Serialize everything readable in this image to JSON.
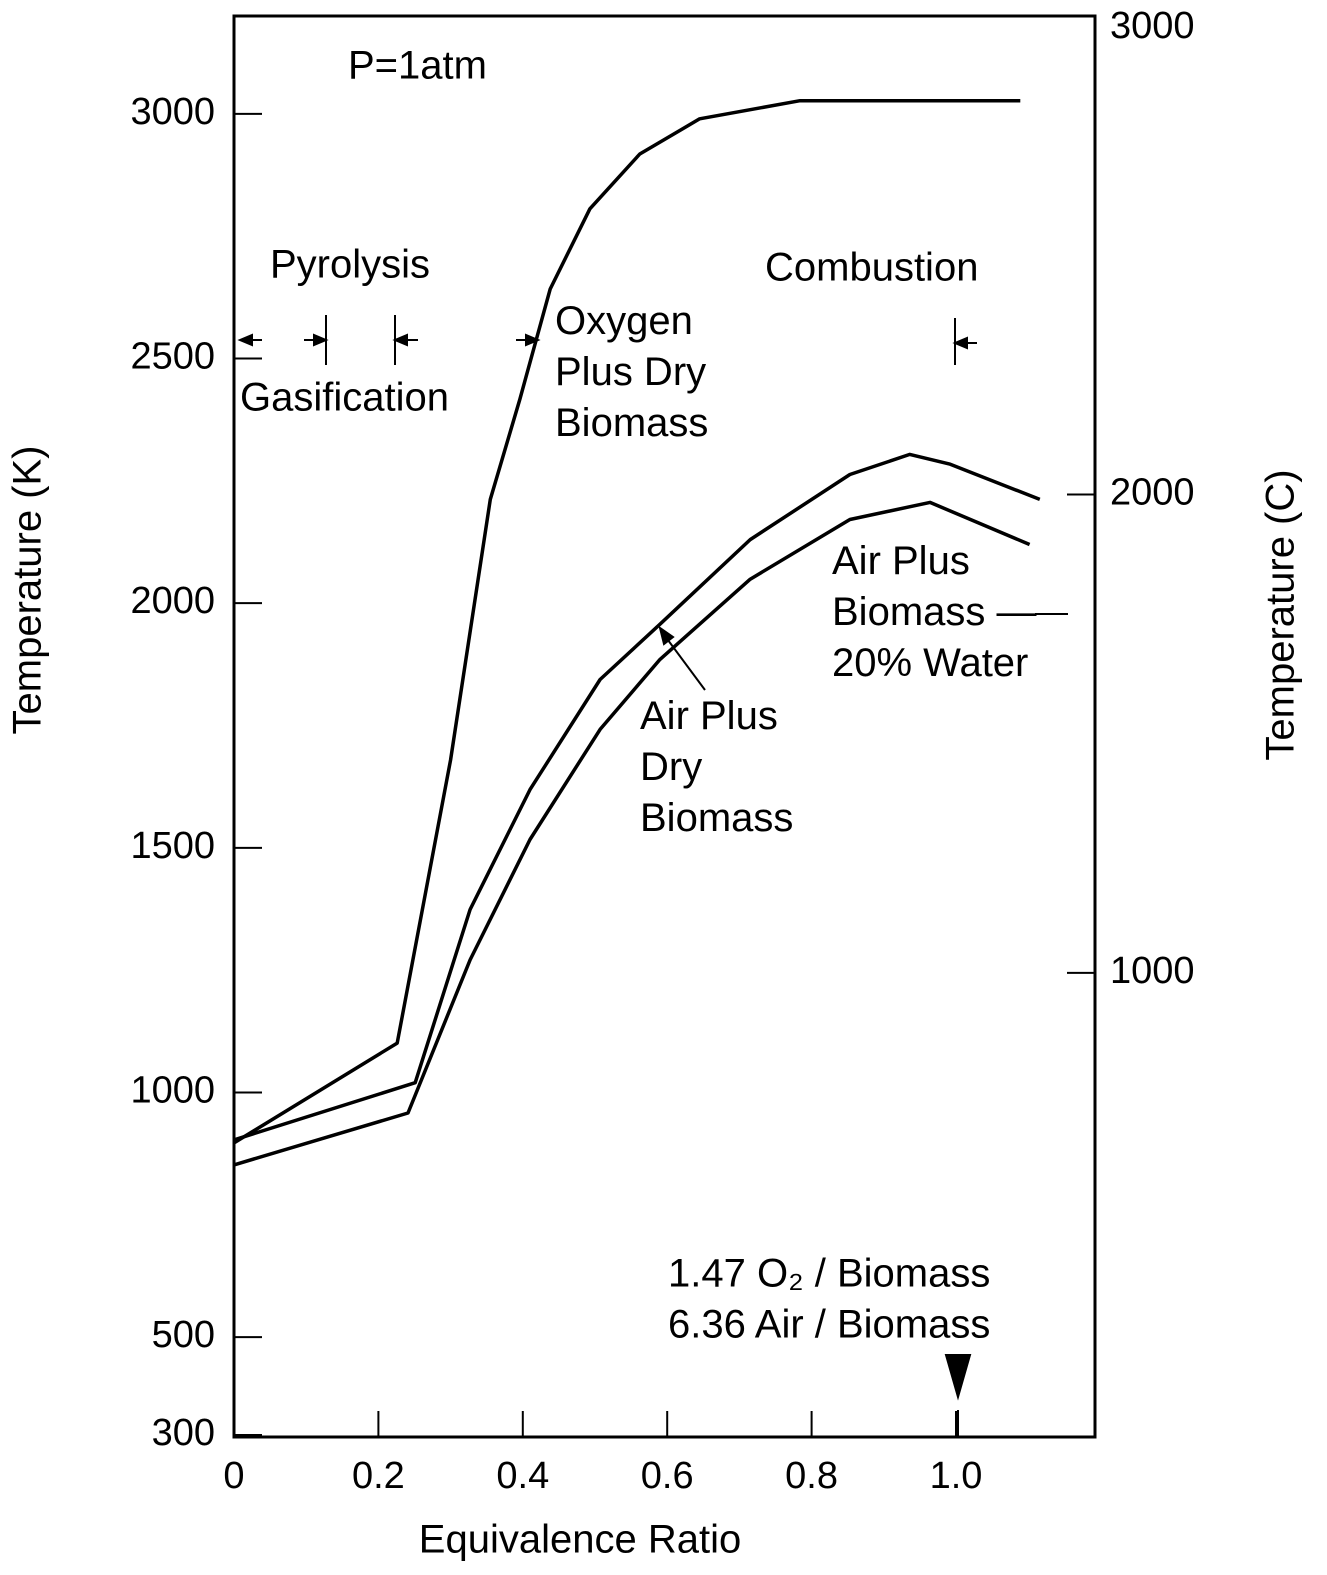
{
  "chart_data": {
    "type": "line",
    "xlabel": "Equivalence Ratio",
    "ylabel": "Temperature (K)",
    "y2label": "Temperature (C)",
    "xlim": [
      0,
      1.19
    ],
    "xticks": [
      0,
      0.2,
      0.4,
      0.6,
      0.8,
      {
        "value": 1,
        "label": "1.0"
      }
    ],
    "ylim": [
      300,
      3200
    ],
    "yticks": [
      300,
      500,
      1000,
      1500,
      2000,
      2500,
      3000
    ],
    "y2lim": [
      30,
      3000
    ],
    "y2ticks": [
      1000,
      2000,
      3000
    ],
    "grid": false,
    "series": [
      {
        "name": "Oxygen Plus Dry Biomass",
        "color": "#000000",
        "x": [
          0,
          0.226,
          0.3,
          0.355,
          0.396,
          0.438,
          0.493,
          0.562,
          0.645,
          0.784,
          1.089
        ],
        "values": [
          897,
          1101,
          1680,
          2212,
          2417,
          2642,
          2806,
          2918,
          2990,
          3027,
          3027
        ]
      },
      {
        "name": "Air Plus Dry Biomass",
        "color": "#000000",
        "x": [
          0,
          0.251,
          0.327,
          0.41,
          0.507,
          0.59,
          0.715,
          0.853,
          0.936,
          0.992,
          1.116
        ],
        "values": [
          903,
          1020,
          1374,
          1619,
          1844,
          1957,
          2130,
          2263,
          2304,
          2284,
          2212
        ]
      },
      {
        "name": "Air Plus Biomass — 20% Water",
        "color": "#000000",
        "x": [
          0,
          0.241,
          0.327,
          0.41,
          0.507,
          0.59,
          0.715,
          0.853,
          0.964,
          1.102
        ],
        "values": [
          852,
          958,
          1271,
          1517,
          1742,
          1885,
          2049,
          2171,
          2206,
          2120
        ]
      }
    ],
    "annotations": [
      "P=1atm",
      "Pyrolysis",
      "Gasification",
      "Combustion",
      "1.47 O₂ / Biomass",
      "6.36 Air / Biomass"
    ]
  }
}
